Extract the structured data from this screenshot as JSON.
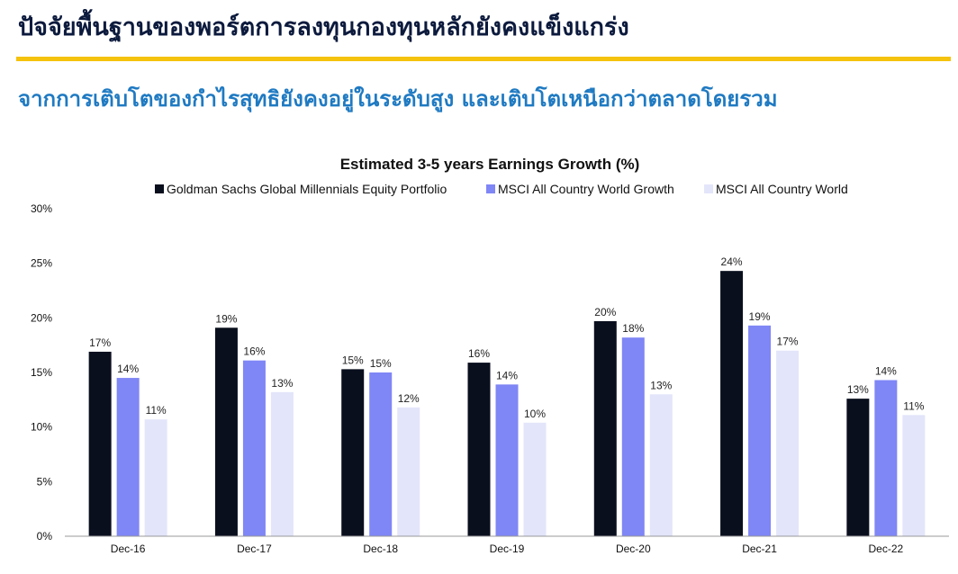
{
  "header": {
    "title": "ปัจจัยพื้นฐานของพอร์ตการลงทุนกองทุนหลักยังคงแข็งแกร่ง",
    "subtitle": "จากการเติบโตของกำไรสุทธิยังคงอยู่ในระดับสูง และเติบโตเหนือกว่าตลาดโดยรวม",
    "accent_color": "#f5c20d",
    "title_color": "#0c1a3d",
    "subtitle_color": "#1f7ac2"
  },
  "chart_data": {
    "type": "bar",
    "title": "Estimated 3-5 years Earnings Growth (%)",
    "xlabel": "",
    "ylabel": "",
    "categories": [
      "Dec-16",
      "Dec-17",
      "Dec-18",
      "Dec-19",
      "Dec-20",
      "Dec-21",
      "Dec-22"
    ],
    "ylim": [
      0,
      30
    ],
    "yticks": [
      "0%",
      "5%",
      "10%",
      "15%",
      "20%",
      "25%",
      "30%"
    ],
    "grid": false,
    "legend_position": "top",
    "series": [
      {
        "name": "Goldman Sachs Global Millennials Equity Portfolio",
        "color": "#0a0f1e",
        "values": [
          16.9,
          19.1,
          15.3,
          15.9,
          19.7,
          24.3,
          12.6
        ],
        "labels": [
          "17%",
          "19%",
          "15%",
          "16%",
          "20%",
          "24%",
          "13%"
        ]
      },
      {
        "name": "MSCI All Country World Growth",
        "color": "#7f86f5",
        "values": [
          14.5,
          16.1,
          15.0,
          13.9,
          18.2,
          19.3,
          14.3
        ],
        "labels": [
          "14%",
          "16%",
          "15%",
          "14%",
          "18%",
          "19%",
          "14%"
        ]
      },
      {
        "name": "MSCI All Country World",
        "color": "#e3e5fa",
        "values": [
          10.7,
          13.2,
          11.8,
          10.4,
          13.0,
          17.0,
          11.1
        ],
        "labels": [
          "11%",
          "13%",
          "12%",
          "10%",
          "13%",
          "17%",
          "11%"
        ]
      }
    ]
  }
}
